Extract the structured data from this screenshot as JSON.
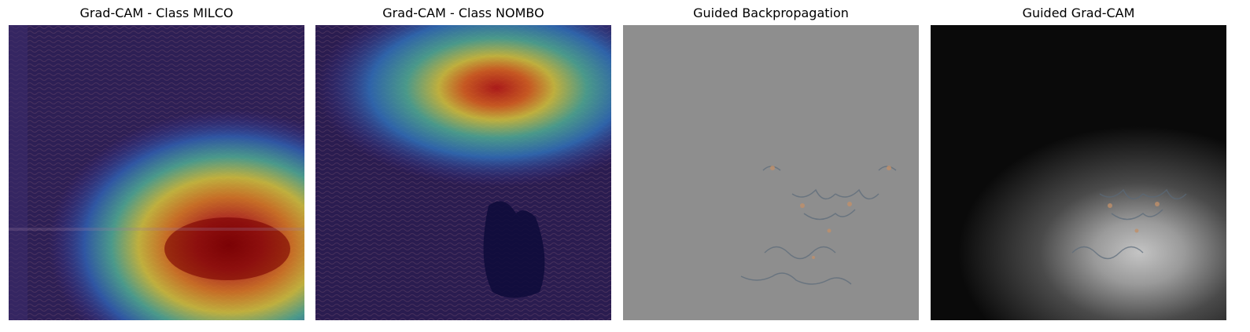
{
  "panels": [
    {
      "title": "Grad-CAM - Class MILCO",
      "image": "gradcam-heatmap-overlay-milco"
    },
    {
      "title": "Grad-CAM - Class NOMBO",
      "image": "gradcam-heatmap-overlay-nombo"
    },
    {
      "title": "Guided Backpropagation",
      "image": "guided-backprop-gradient-map"
    },
    {
      "title": "Guided Grad-CAM",
      "image": "guided-gradcam-map"
    }
  ],
  "colors": {
    "dark_background": "#2a1c50",
    "gray_background": "#8e8e8e",
    "heat_red": "#8b0000",
    "heat_yellow": "#e6d23c",
    "heat_cyan": "#3cb4b4"
  }
}
